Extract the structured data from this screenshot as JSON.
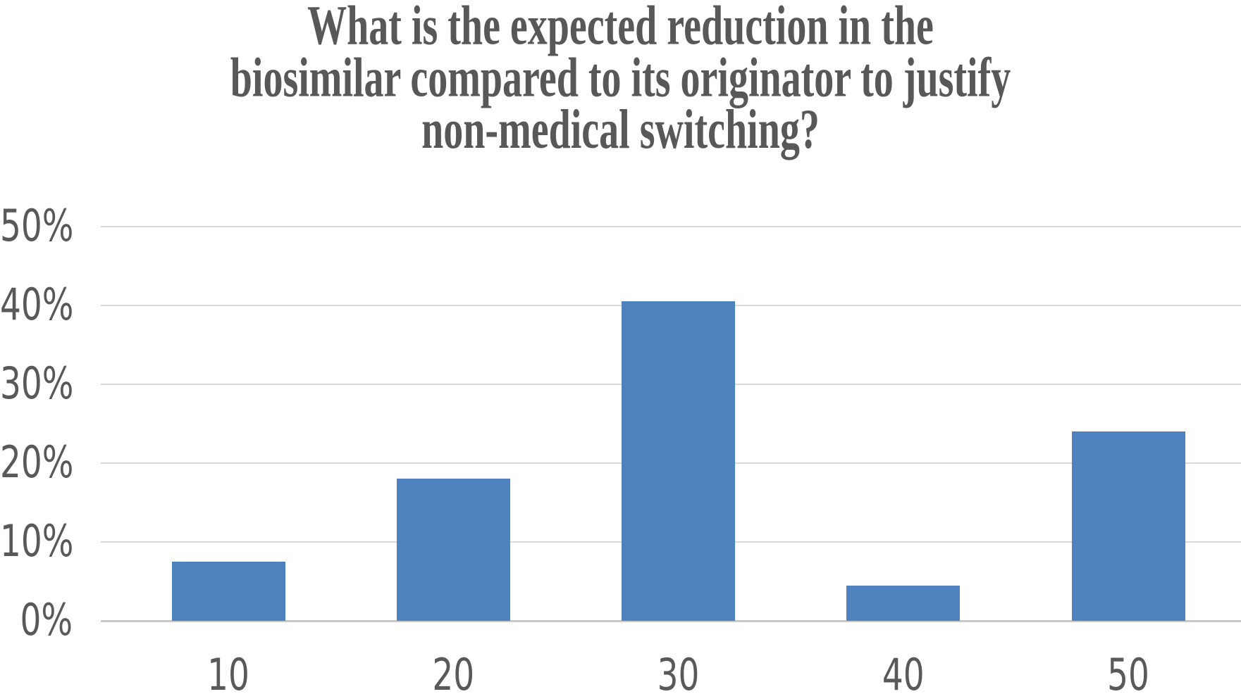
{
  "chart_data": {
    "type": "bar",
    "title": "What is the expected reduction in the biosimilar compared to its originator to justify non-medical switching?",
    "title_lines": [
      "What is the expected reduction in the",
      "biosimilar compared to its originator to justify",
      "non-medical switching?"
    ],
    "categories": [
      "10",
      "20",
      "30",
      "40",
      "50"
    ],
    "values": [
      7.5,
      18,
      40.5,
      4.5,
      24
    ],
    "unit": "%",
    "xlabel": "",
    "ylabel": "",
    "ylim": [
      0,
      50
    ],
    "ytick_step": 10,
    "ytick_labels": [
      "0%",
      "10%",
      "20%",
      "30%",
      "40%",
      "50%"
    ],
    "grid": "horizontal-only",
    "legend": "none",
    "colors": {
      "bar": "#4d82be",
      "gridline": "#d9d9d9",
      "baseline": "#c9c9c9",
      "axis_label": "#595959",
      "title": "#58585a",
      "background": "#ffffff"
    }
  }
}
